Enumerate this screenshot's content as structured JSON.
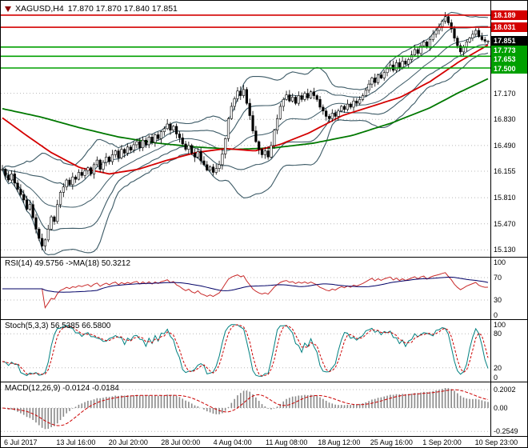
{
  "header": {
    "symbol": "XAGUSD,H4",
    "ohlc": "17.870 17.870 17.840 17.851"
  },
  "colors": {
    "bull": "#ffffff",
    "bear": "#000000",
    "wick": "#000000",
    "bollinger": "#3c5a66",
    "ma_fast": "#d40000",
    "ma_slow": "#007800",
    "resistance": "#d40000",
    "support": "#00a000",
    "current_badge": "#000000",
    "rsi_line": "#c92a2a",
    "rsi_ma": "#000066",
    "stoch_k": "#008080",
    "stoch_d": "#cc0000",
    "macd_hist": "#8a8a8a",
    "macd_signal": "#cc0000",
    "grid": "#b8b8b8"
  },
  "chart_data": {
    "type": "candlestick",
    "symbol": "XAGUSD",
    "timeframe": "H4",
    "title": "XAGUSD,H4 17.870 17.870 17.840 17.851",
    "price_range": [
      15.05,
      18.355
    ],
    "x_labels": [
      "6 Jul 2017",
      "13 Jul 16:00",
      "20 Jul 20:00",
      "28 Jul 00:00",
      "4 Aug 04:00",
      "11 Aug 08:00",
      "18 Aug 12:00",
      "25 Aug 16:00",
      "1 Sep 20:00",
      "10 Sep 23:00"
    ],
    "price_ticks": [
      {
        "label": "17.170",
        "value": 17.17
      },
      {
        "label": "16.830",
        "value": 16.83
      },
      {
        "label": "16.490",
        "value": 16.49
      },
      {
        "label": "16.155",
        "value": 16.155
      },
      {
        "label": "15.810",
        "value": 15.81
      },
      {
        "label": "15.470",
        "value": 15.47
      },
      {
        "label": "15.130",
        "value": 15.13
      }
    ],
    "price_badges": [
      {
        "label": "18.189",
        "value": 18.189,
        "kind": "resistance"
      },
      {
        "label": "18.031",
        "value": 18.031,
        "kind": "resistance"
      },
      {
        "label": "17.851",
        "value": 17.851,
        "kind": "current"
      },
      {
        "label": "17.773",
        "value": 17.773,
        "kind": "support"
      },
      {
        "label": "17.653",
        "value": 17.653,
        "kind": "support"
      },
      {
        "label": "17.500",
        "value": 17.5,
        "kind": "support"
      }
    ],
    "support_resistance_lines": [
      {
        "value": 18.189,
        "kind": "resistance"
      },
      {
        "value": 18.031,
        "kind": "resistance"
      },
      {
        "value": 17.773,
        "kind": "support"
      },
      {
        "value": 17.653,
        "kind": "support"
      },
      {
        "value": 17.5,
        "kind": "support"
      }
    ],
    "current_price": 17.851,
    "closes": [
      16.18,
      16.1,
      16.04,
      16.12,
      16.0,
      15.92,
      15.85,
      15.78,
      15.66,
      15.72,
      15.55,
      15.4,
      15.28,
      15.18,
      15.26,
      15.4,
      15.56,
      15.5,
      15.72,
      15.88,
      15.95,
      16.04,
      15.98,
      16.08,
      16.05,
      16.14,
      16.1,
      16.16,
      16.2,
      16.12,
      16.24,
      16.3,
      16.18,
      16.27,
      16.34,
      16.28,
      16.37,
      16.42,
      16.33,
      16.44,
      16.39,
      16.47,
      16.43,
      16.5,
      16.54,
      16.46,
      16.56,
      16.5,
      16.6,
      16.53,
      16.63,
      16.58,
      16.67,
      16.71,
      16.77,
      16.69,
      16.74,
      16.64,
      16.59,
      16.51,
      16.44,
      16.49,
      16.39,
      16.34,
      16.41,
      16.29,
      16.24,
      16.17,
      16.21,
      16.14,
      16.19,
      16.24,
      16.38,
      16.58,
      16.84,
      17.0,
      17.1,
      17.2,
      17.14,
      17.22,
      17.04,
      16.88,
      16.68,
      16.54,
      16.44,
      16.37,
      16.42,
      16.34,
      16.49,
      16.69,
      16.84,
      17.0,
      17.09,
      17.15,
      17.07,
      17.12,
      17.04,
      17.14,
      17.09,
      17.17,
      17.11,
      17.19,
      17.14,
      17.09,
      16.99,
      16.94,
      16.87,
      16.84,
      16.91,
      16.87,
      16.94,
      17.0,
      16.96,
      17.03,
      16.99,
      17.07,
      17.04,
      17.09,
      17.14,
      17.21,
      17.29,
      17.37,
      17.31,
      17.41,
      17.37,
      17.44,
      17.49,
      17.54,
      17.47,
      17.57,
      17.51,
      17.59,
      17.55,
      17.61,
      17.67,
      17.74,
      17.69,
      17.79,
      17.84,
      17.77,
      17.87,
      17.94,
      17.99,
      18.04,
      18.11,
      18.17,
      18.09,
      18.01,
      17.89,
      17.79,
      17.71,
      17.77,
      17.84,
      17.89,
      17.94,
      17.99,
      17.91,
      17.87,
      17.85,
      17.851
    ],
    "ma_fast_anchors": [
      [
        0,
        16.85
      ],
      [
        0.05,
        16.62
      ],
      [
        0.1,
        16.4
      ],
      [
        0.16,
        16.2
      ],
      [
        0.22,
        16.12
      ],
      [
        0.28,
        16.18
      ],
      [
        0.34,
        16.3
      ],
      [
        0.4,
        16.4
      ],
      [
        0.46,
        16.45
      ],
      [
        0.52,
        16.42
      ],
      [
        0.57,
        16.5
      ],
      [
        0.63,
        16.65
      ],
      [
        0.7,
        16.88
      ],
      [
        0.76,
        17.0
      ],
      [
        0.82,
        17.12
      ],
      [
        0.88,
        17.32
      ],
      [
        0.94,
        17.58
      ],
      [
        1,
        17.8
      ]
    ],
    "ma_slow_anchors": [
      [
        0,
        16.97
      ],
      [
        0.08,
        16.86
      ],
      [
        0.16,
        16.72
      ],
      [
        0.24,
        16.6
      ],
      [
        0.32,
        16.52
      ],
      [
        0.4,
        16.47
      ],
      [
        0.48,
        16.44
      ],
      [
        0.56,
        16.46
      ],
      [
        0.64,
        16.52
      ],
      [
        0.72,
        16.62
      ],
      [
        0.8,
        16.78
      ],
      [
        0.88,
        16.98
      ],
      [
        0.94,
        17.18
      ],
      [
        1,
        17.36
      ]
    ],
    "bollinger": {
      "period": 20,
      "deviations": [
        1,
        2
      ]
    },
    "indicators": {
      "rsi": {
        "label": "RSI(14) 49.5756 ->MA(18) 50.3212",
        "period": 14,
        "ma_period": 18,
        "current": 49.5756,
        "ma_current": 50.3212,
        "ticks": [
          {
            "label": "100",
            "value": 100
          },
          {
            "label": "70",
            "value": 70
          },
          {
            "label": "30",
            "value": 30
          },
          {
            "label": "0",
            "value": 0
          }
        ],
        "levels": [
          70,
          30
        ],
        "range": [
          0,
          100
        ]
      },
      "stoch": {
        "label": "Stoch(5,3,3) 56.5385 66.5800",
        "k_period": 5,
        "d_period": 3,
        "slowing": 3,
        "current_k": 56.5385,
        "current_d": 66.58,
        "ticks": [
          {
            "label": "100",
            "value": 100
          },
          {
            "label": "80",
            "value": 80
          },
          {
            "label": "20",
            "value": 20
          },
          {
            "label": "0",
            "value": 0
          }
        ],
        "levels": [
          80,
          20
        ],
        "range": [
          0,
          100
        ]
      },
      "macd": {
        "label": "MACD(12,26,9) -0.0124 -0.0184",
        "fast": 12,
        "slow": 26,
        "signal": 9,
        "current": -0.0124,
        "current_signal": -0.0184,
        "ticks": [
          {
            "label": "0.2002",
            "value": 0.2002
          },
          {
            "label": "0.00",
            "value": 0
          },
          {
            "label": "-0.2549",
            "value": -0.2549
          }
        ]
      }
    }
  }
}
